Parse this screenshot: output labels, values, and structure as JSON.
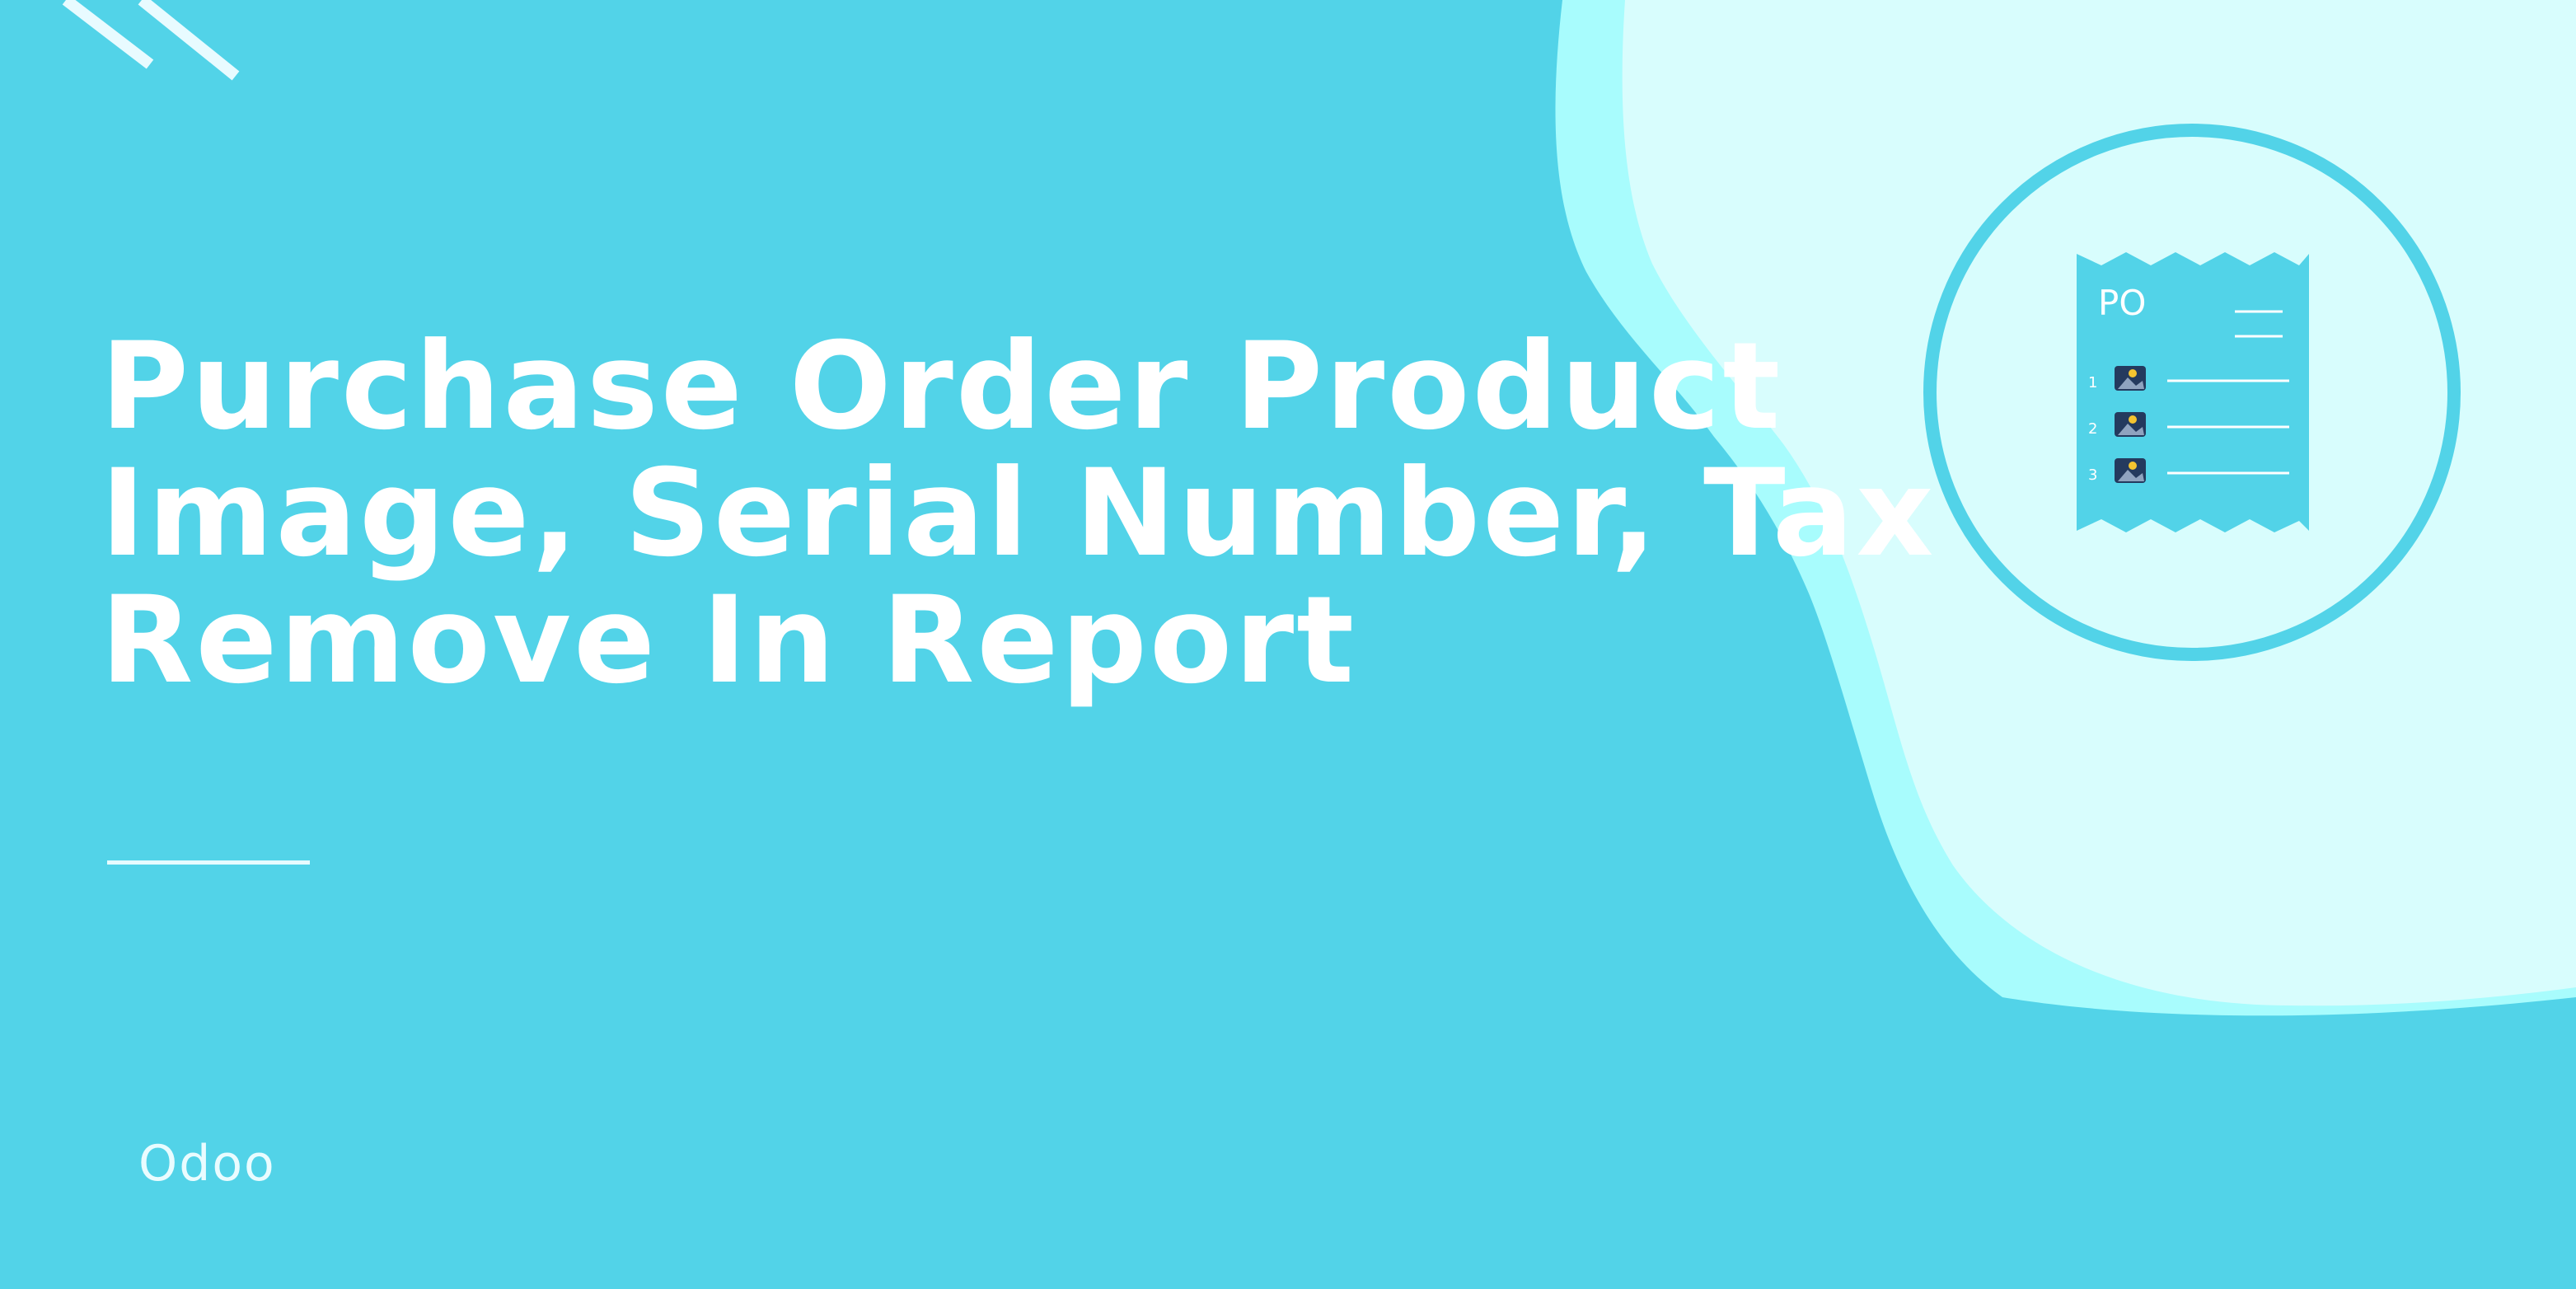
{
  "banner": {
    "title_lines": [
      "Purchase Order Product",
      "Image, Serial Number, Tax",
      "Remove In Report"
    ],
    "brand": "Odoo"
  },
  "po_icon": {
    "label": "PO",
    "rows": [
      "1",
      "2",
      "3"
    ],
    "icon": "receipt-icon"
  },
  "colors": {
    "background": "#52d3e8",
    "wave_mid": "#a8fcfd",
    "wave_light": "#d8fdfd",
    "text": "#ffffff"
  }
}
